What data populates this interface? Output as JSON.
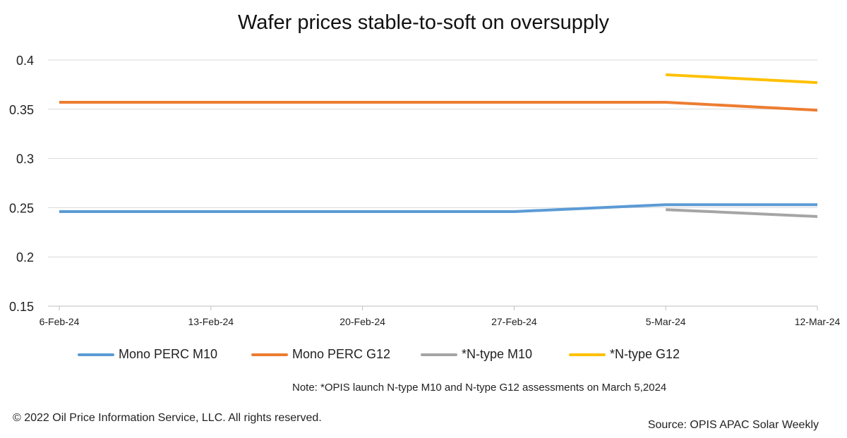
{
  "chart_data": {
    "type": "line",
    "title": "Wafer prices stable-to-soft on oversupply",
    "categories": [
      "6-Feb-24",
      "13-Feb-24",
      "20-Feb-24",
      "27-Feb-24",
      "5-Mar-24",
      "12-Mar-24"
    ],
    "ylim": [
      0.15,
      0.4
    ],
    "yticks": [
      "0.15",
      "0.2",
      "0.25",
      "0.3",
      "0.35",
      "0.4"
    ],
    "grid": true,
    "legend_position": "bottom",
    "series": [
      {
        "name": "Mono PERC M10",
        "color": "#5B9BD5",
        "values": [
          0.246,
          0.246,
          0.246,
          0.246,
          0.253,
          0.253
        ]
      },
      {
        "name": "Mono PERC G12",
        "color": "#ED7D31",
        "values": [
          0.357,
          0.357,
          0.357,
          0.357,
          0.357,
          0.349
        ]
      },
      {
        "name": "*N-type M10",
        "color": "#A5A5A5",
        "values": [
          null,
          null,
          null,
          null,
          0.248,
          0.241
        ]
      },
      {
        "name": "*N-type G12",
        "color": "#FFC000",
        "values": [
          null,
          null,
          null,
          null,
          0.385,
          0.377
        ]
      }
    ]
  },
  "note": "Note: *OPIS launch N-type M10 and N-type G12 assessments on March 5,2024",
  "copyright": "© 2022 Oil Price Information Service, LLC. All rights reserved.",
  "source": "Source: OPIS APAC Solar Weekly"
}
